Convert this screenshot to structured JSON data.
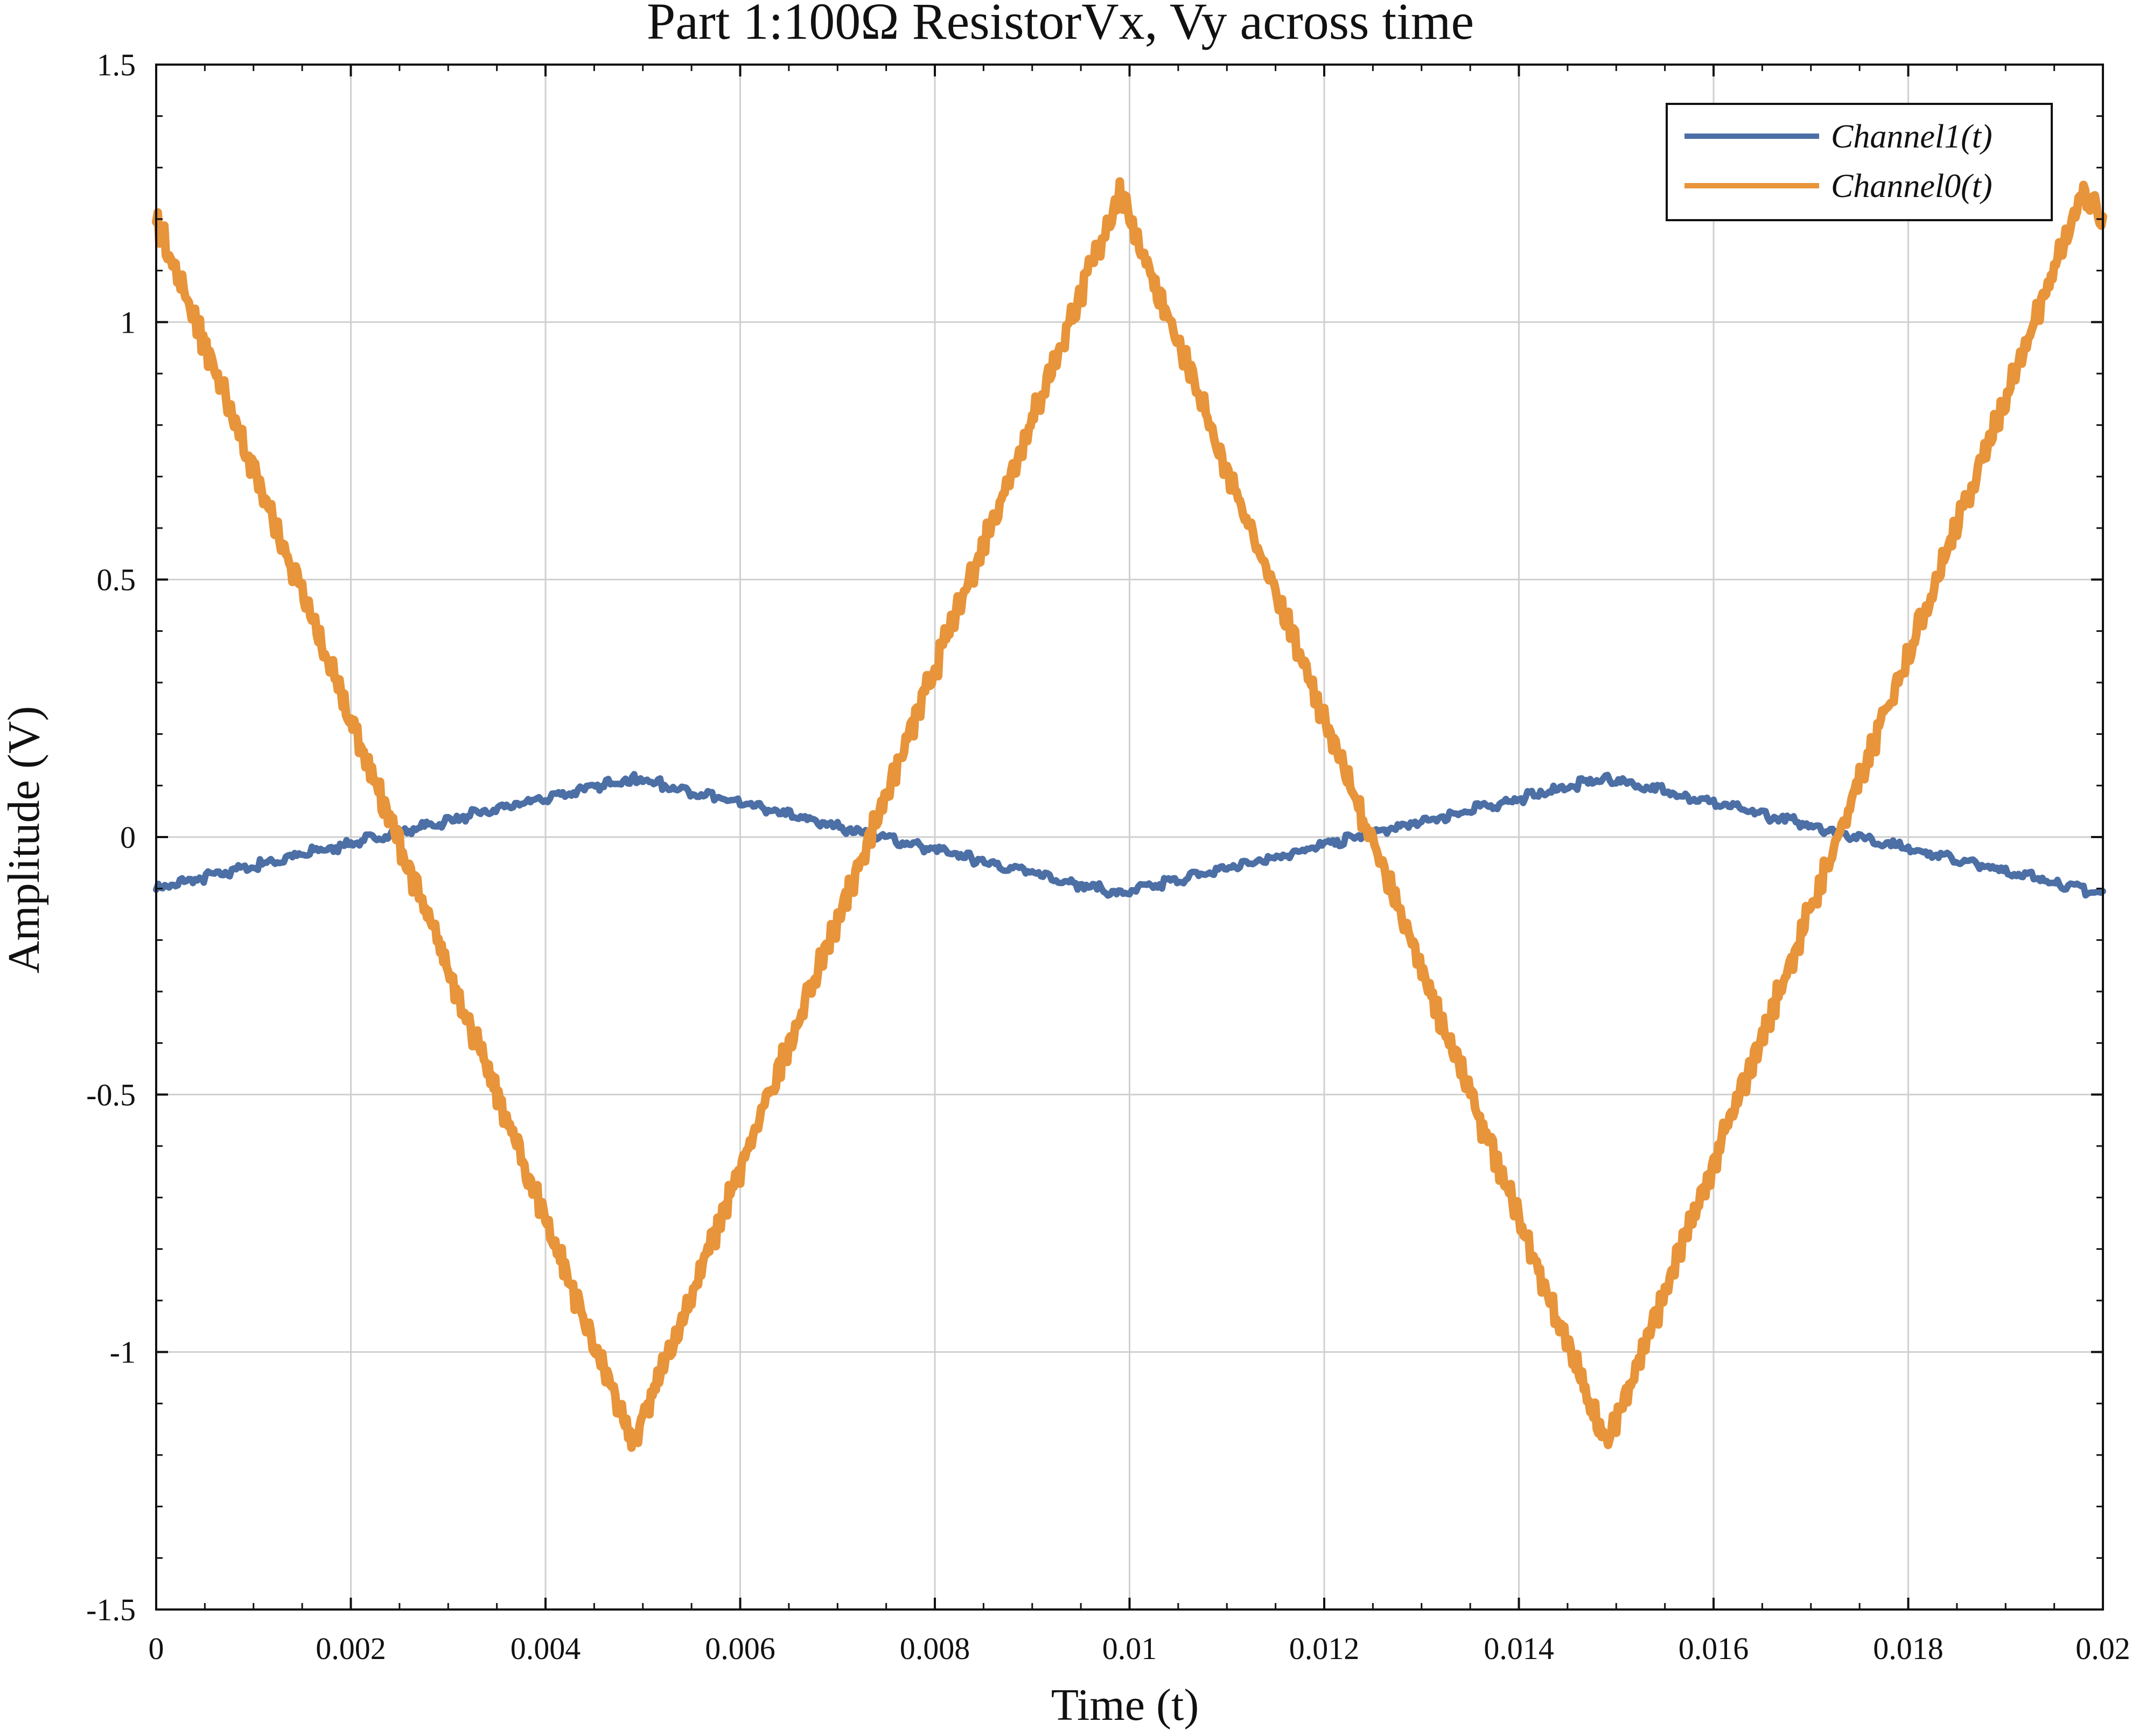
{
  "chart_data": {
    "type": "line",
    "title": "Part 1:100Ω ResistorVx, Vy across time",
    "xlabel": "Time (t)",
    "ylabel": "Amplitude (V)",
    "xlim": [
      0,
      0.02
    ],
    "ylim": [
      -1.5,
      1.5
    ],
    "x_ticks": [
      0,
      0.002,
      0.004,
      0.006,
      0.008,
      0.01,
      0.012,
      0.014,
      0.016,
      0.018,
      0.02
    ],
    "x_tick_labels": [
      "0",
      "0.002",
      "0.004",
      "0.006",
      "0.008",
      "0.01",
      "0.012",
      "0.014",
      "0.016",
      "0.018",
      "0.02"
    ],
    "y_ticks": [
      -1.5,
      -1,
      -0.5,
      0,
      0.5,
      1,
      1.5
    ],
    "y_tick_labels": [
      "-1.5",
      "-1",
      "-0.5",
      "0",
      "0.5",
      "1",
      "1.5"
    ],
    "grid": true,
    "legend_position": "top-right",
    "series": [
      {
        "name": "Channel1(t)",
        "color": "#4c6fa5",
        "x": [
          0,
          0.0049,
          0.0099,
          0.0149,
          0.02
        ],
        "y": [
          -0.1,
          0.115,
          -0.11,
          0.115,
          -0.11
        ]
      },
      {
        "name": "Channel0(t)",
        "color": "#e8943a",
        "x": [
          0,
          0.0049,
          0.0099,
          0.0149,
          0.0198,
          0.02
        ],
        "y": [
          1.2,
          -1.18,
          1.25,
          -1.18,
          1.25,
          1.2
        ]
      }
    ]
  }
}
